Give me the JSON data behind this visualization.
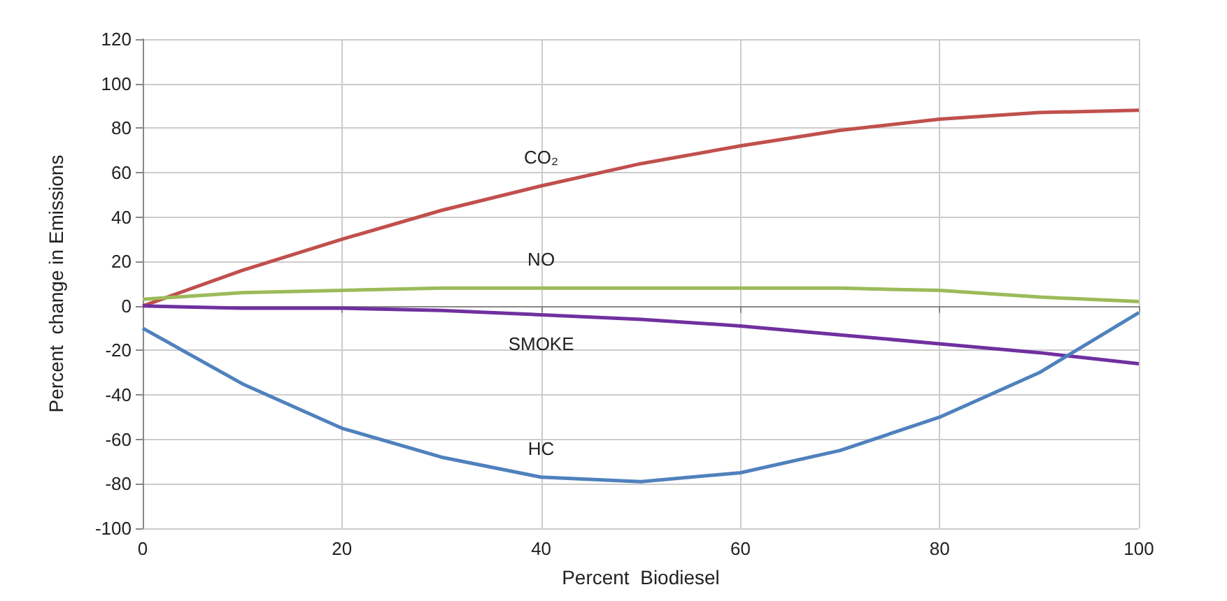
{
  "chart_data": {
    "type": "line",
    "xlabel": "Percent  Biodiesel",
    "ylabel": "Percent  change in Emissions",
    "x": [
      0,
      10,
      20,
      30,
      40,
      50,
      60,
      70,
      80,
      90,
      100
    ],
    "series": [
      {
        "name": "CO₂",
        "color": "#c0504d",
        "values": [
          0,
          16,
          30,
          43,
          54,
          64,
          72,
          79,
          84,
          87,
          88
        ]
      },
      {
        "name": "NO",
        "color": "#9bbb59",
        "values": [
          3,
          6,
          7,
          8,
          8,
          8,
          8,
          8,
          7,
          4,
          2
        ]
      },
      {
        "name": "SMOKE",
        "color": "#7030a0",
        "values": [
          0,
          -1,
          -1,
          -2,
          -4,
          -6,
          -9,
          -13,
          -17,
          -21,
          -26
        ]
      },
      {
        "name": "HC",
        "color": "#4f81bd",
        "values": [
          -10,
          -35,
          -55,
          -68,
          -77,
          -79,
          -75,
          -65,
          -50,
          -30,
          -3
        ]
      }
    ],
    "xlim": [
      0,
      100
    ],
    "xticks": [
      0,
      20,
      40,
      60,
      80,
      100
    ],
    "ylim": [
      -100,
      120
    ],
    "yticks": [
      -100,
      -80,
      -60,
      -40,
      -20,
      0,
      20,
      40,
      60,
      80,
      100,
      120
    ],
    "grid": true,
    "legend": false,
    "marker": "none",
    "line_style": "solid"
  }
}
